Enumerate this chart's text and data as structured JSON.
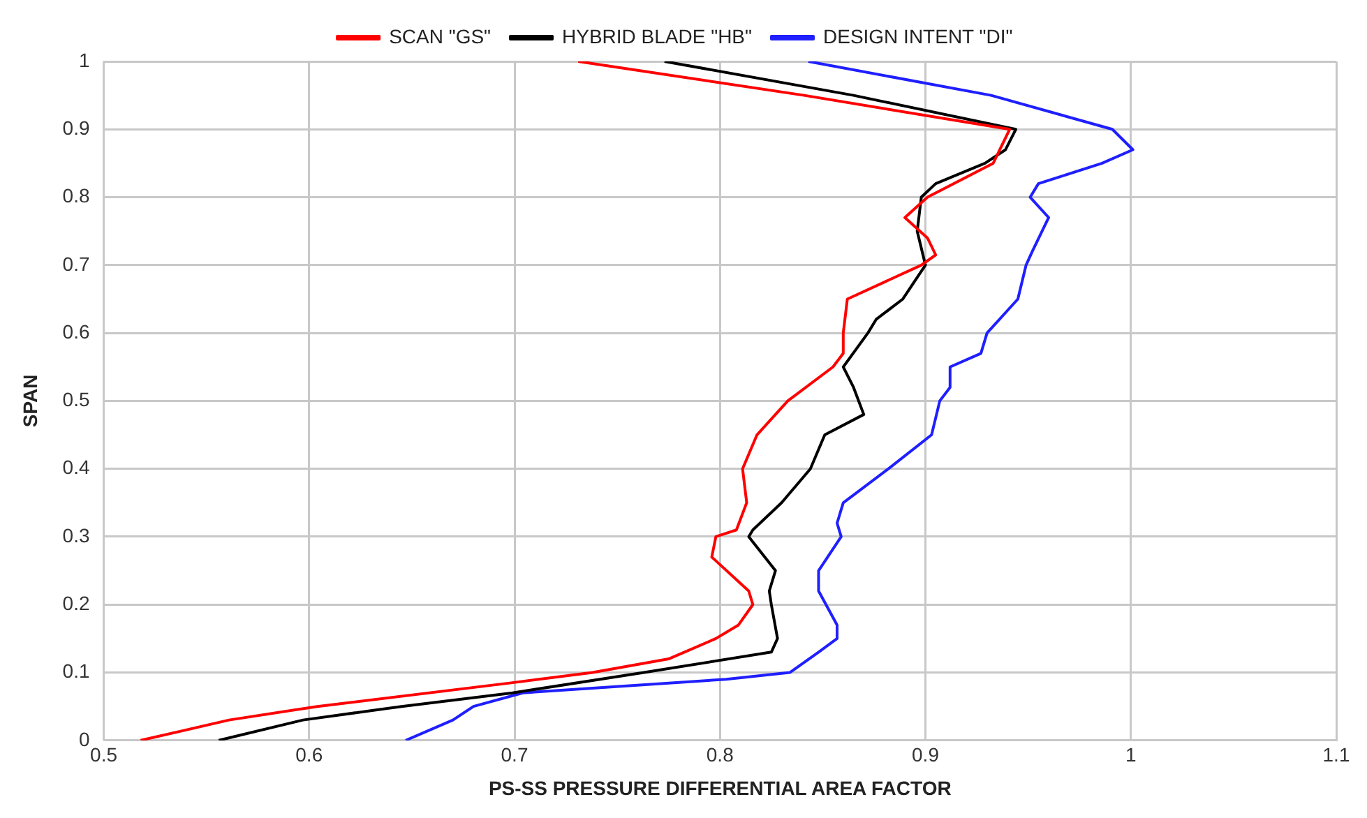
{
  "chart_data": {
    "type": "line",
    "xlabel": "PS-SS PRESSURE DIFFERENTIAL AREA FACTOR",
    "ylabel": "SPAN",
    "xlim": [
      0.5,
      1.1
    ],
    "xticks": [
      0.5,
      0.6,
      0.7,
      0.8,
      0.9,
      1,
      1.1
    ],
    "ylim": [
      0,
      1
    ],
    "yticks": [
      0,
      0.1,
      0.2,
      0.3,
      0.4,
      0.5,
      0.6,
      0.7,
      0.8,
      0.9,
      1
    ],
    "grid": true,
    "legend": "top",
    "marker": "none",
    "line_style": "solid",
    "series": [
      {
        "name": "SCAN \"GS\"",
        "color": "#ff0000",
        "x": [
          0.518,
          0.561,
          0.604,
          0.699,
          0.738,
          0.775,
          0.798,
          0.809,
          0.816,
          0.814,
          0.796,
          0.798,
          0.808,
          0.813,
          0.811,
          0.818,
          0.833,
          0.855,
          0.86,
          0.86,
          0.862,
          0.898,
          0.905,
          0.901,
          0.89,
          0.901,
          0.933,
          0.941,
          0.841,
          0.731
        ],
        "values": [
          0,
          0.03,
          0.05,
          0.085,
          0.1,
          0.12,
          0.15,
          0.17,
          0.2,
          0.22,
          0.27,
          0.3,
          0.31,
          0.35,
          0.4,
          0.45,
          0.5,
          0.55,
          0.57,
          0.6,
          0.65,
          0.7,
          0.715,
          0.74,
          0.77,
          0.8,
          0.85,
          0.9,
          0.95,
          1
        ]
      },
      {
        "name": "HYBRID BLADE \"HB\"",
        "color": "#000000",
        "x": [
          0.556,
          0.597,
          0.645,
          0.699,
          0.763,
          0.825,
          0.828,
          0.825,
          0.824,
          0.827,
          0.814,
          0.816,
          0.83,
          0.844,
          0.851,
          0.87,
          0.865,
          0.86,
          0.872,
          0.876,
          0.889,
          0.9,
          0.896,
          0.898,
          0.905,
          0.929,
          0.939,
          0.944,
          0.865,
          0.773
        ],
        "values": [
          0,
          0.03,
          0.05,
          0.07,
          0.1,
          0.13,
          0.15,
          0.2,
          0.22,
          0.25,
          0.3,
          0.31,
          0.35,
          0.4,
          0.45,
          0.48,
          0.52,
          0.55,
          0.6,
          0.62,
          0.65,
          0.7,
          0.75,
          0.8,
          0.82,
          0.85,
          0.87,
          0.9,
          0.95,
          1
        ]
      },
      {
        "name": "DESIGN INTENT \"DI\"",
        "color": "#1f1fff",
        "x": [
          0.647,
          0.67,
          0.68,
          0.704,
          0.803,
          0.834,
          0.848,
          0.857,
          0.857,
          0.848,
          0.848,
          0.859,
          0.857,
          0.86,
          0.882,
          0.903,
          0.907,
          0.912,
          0.912,
          0.927,
          0.93,
          0.945,
          0.949,
          0.952,
          0.96,
          0.951,
          0.955,
          0.986,
          1.001,
          0.991,
          0.932,
          0.843
        ],
        "values": [
          0,
          0.03,
          0.05,
          0.07,
          0.09,
          0.1,
          0.13,
          0.15,
          0.17,
          0.22,
          0.25,
          0.3,
          0.32,
          0.35,
          0.4,
          0.45,
          0.5,
          0.52,
          0.55,
          0.57,
          0.6,
          0.65,
          0.7,
          0.72,
          0.77,
          0.8,
          0.82,
          0.85,
          0.87,
          0.9,
          0.95,
          1
        ]
      }
    ]
  }
}
